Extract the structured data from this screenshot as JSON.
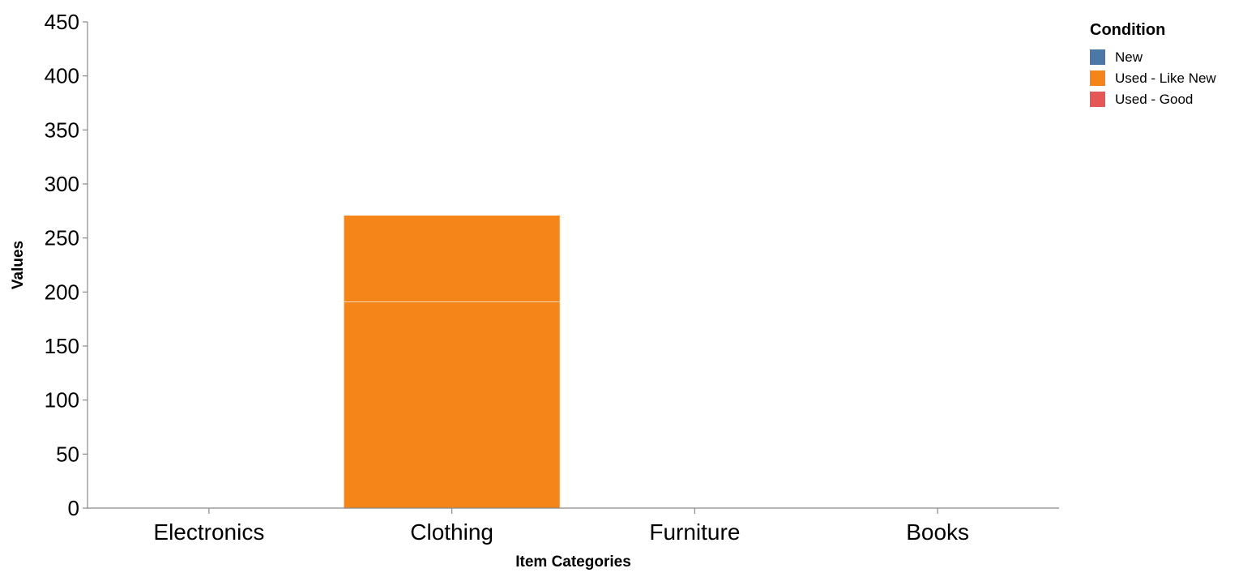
{
  "chart_data": {
    "type": "bar",
    "stacked": true,
    "categories": [
      "Electronics",
      "Clothing",
      "Furniture",
      "Books"
    ],
    "series": [
      {
        "name": "New",
        "values": [
          0,
          0,
          0,
          0
        ],
        "color": "#4c78a8"
      },
      {
        "name": "Used - Like New",
        "values": [
          0,
          271,
          0,
          0
        ],
        "color": "#f58518"
      },
      {
        "name": "Used - Good",
        "values": [
          0,
          0,
          0,
          0
        ],
        "color": "#e45756"
      }
    ],
    "segments": [
      {
        "category": "Clothing",
        "series": "Used - Like New",
        "y0": 0,
        "y1": 191
      },
      {
        "category": "Clothing",
        "series": "Used - Like New",
        "y0": 191,
        "y1": 271
      }
    ],
    "xlabel": "Item Categories",
    "ylabel": "Values",
    "ylim": [
      0,
      450
    ],
    "yticks": [
      0,
      50,
      100,
      150,
      200,
      250,
      300,
      350,
      400,
      450
    ],
    "legend": {
      "title": "Condition",
      "placement": "top-right"
    },
    "grid": false
  }
}
